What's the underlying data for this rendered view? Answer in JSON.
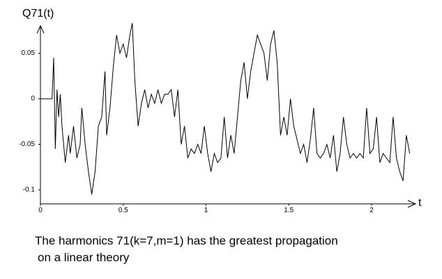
{
  "chart_data": {
    "type": "line",
    "ylabel": "Q71(t)",
    "xlabel": "t",
    "caption": [
      "The harmonics 71(k=7,m=1) has the greatest propagation",
      "on a linear theory"
    ],
    "xlim": [
      0,
      2.26
    ],
    "ylim": [
      -0.115,
      0.08
    ],
    "xticks": [
      0,
      0.5,
      1,
      1.5,
      2
    ],
    "yticks": [
      0.05,
      0,
      -0.05,
      -0.1
    ],
    "color": "#000000",
    "x": [
      0,
      0.02,
      0.04,
      0.06,
      0.07,
      0.08,
      0.09,
      0.1,
      0.11,
      0.12,
      0.13,
      0.15,
      0.17,
      0.18,
      0.2,
      0.22,
      0.24,
      0.25,
      0.27,
      0.29,
      0.31,
      0.33,
      0.35,
      0.37,
      0.39,
      0.4,
      0.42,
      0.44,
      0.46,
      0.48,
      0.5,
      0.52,
      0.54,
      0.555,
      0.57,
      0.59,
      0.61,
      0.63,
      0.65,
      0.67,
      0.69,
      0.71,
      0.73,
      0.75,
      0.77,
      0.79,
      0.81,
      0.83,
      0.85,
      0.87,
      0.89,
      0.91,
      0.93,
      0.95,
      0.97,
      0.99,
      1.01,
      1.03,
      1.05,
      1.07,
      1.09,
      1.11,
      1.13,
      1.15,
      1.17,
      1.19,
      1.21,
      1.23,
      1.25,
      1.27,
      1.29,
      1.31,
      1.33,
      1.35,
      1.37,
      1.39,
      1.41,
      1.43,
      1.45,
      1.47,
      1.49,
      1.51,
      1.53,
      1.55,
      1.57,
      1.59,
      1.61,
      1.63,
      1.65,
      1.67,
      1.69,
      1.71,
      1.73,
      1.75,
      1.77,
      1.79,
      1.81,
      1.83,
      1.85,
      1.87,
      1.89,
      1.91,
      1.93,
      1.95,
      1.97,
      1.99,
      2.01,
      2.03,
      2.05,
      2.07,
      2.09,
      2.11,
      2.13,
      2.15,
      2.17,
      2.19,
      2.21,
      2.23
    ],
    "values": [
      0,
      0,
      0,
      0,
      0,
      0.045,
      -0.055,
      0.01,
      -0.02,
      0.005,
      -0.03,
      -0.07,
      -0.04,
      -0.06,
      -0.03,
      -0.065,
      -0.05,
      -0.01,
      -0.05,
      -0.08,
      -0.105,
      -0.08,
      -0.03,
      -0.02,
      0.03,
      -0.04,
      -0.01,
      0.035,
      0.07,
      0.05,
      0.06,
      0.045,
      0.07,
      0.083,
      0.02,
      -0.03,
      -0.005,
      0.01,
      -0.01,
      0.005,
      -0.005,
      0.01,
      -0.005,
      0.005,
      0.005,
      0.01,
      -0.02,
      0.01,
      -0.05,
      -0.03,
      -0.065,
      -0.055,
      -0.06,
      -0.05,
      -0.06,
      -0.03,
      -0.06,
      -0.08,
      -0.06,
      -0.07,
      -0.065,
      -0.02,
      -0.065,
      -0.04,
      -0.06,
      -0.02,
      0.02,
      0.04,
      0.0,
      0.03,
      0.05,
      0.07,
      0.06,
      0.05,
      0.02,
      0.06,
      0.075,
      0.04,
      -0.04,
      -0.02,
      -0.04,
      0.0,
      -0.03,
      -0.045,
      -0.06,
      -0.05,
      -0.07,
      -0.045,
      -0.01,
      -0.06,
      -0.065,
      -0.06,
      -0.05,
      -0.065,
      -0.04,
      -0.08,
      -0.06,
      -0.02,
      -0.05,
      -0.065,
      -0.06,
      -0.065,
      -0.06,
      -0.065,
      -0.01,
      -0.06,
      -0.055,
      -0.02,
      -0.07,
      -0.06,
      -0.065,
      -0.07,
      -0.02,
      -0.065,
      -0.08,
      -0.09,
      -0.04,
      -0.06
    ]
  }
}
